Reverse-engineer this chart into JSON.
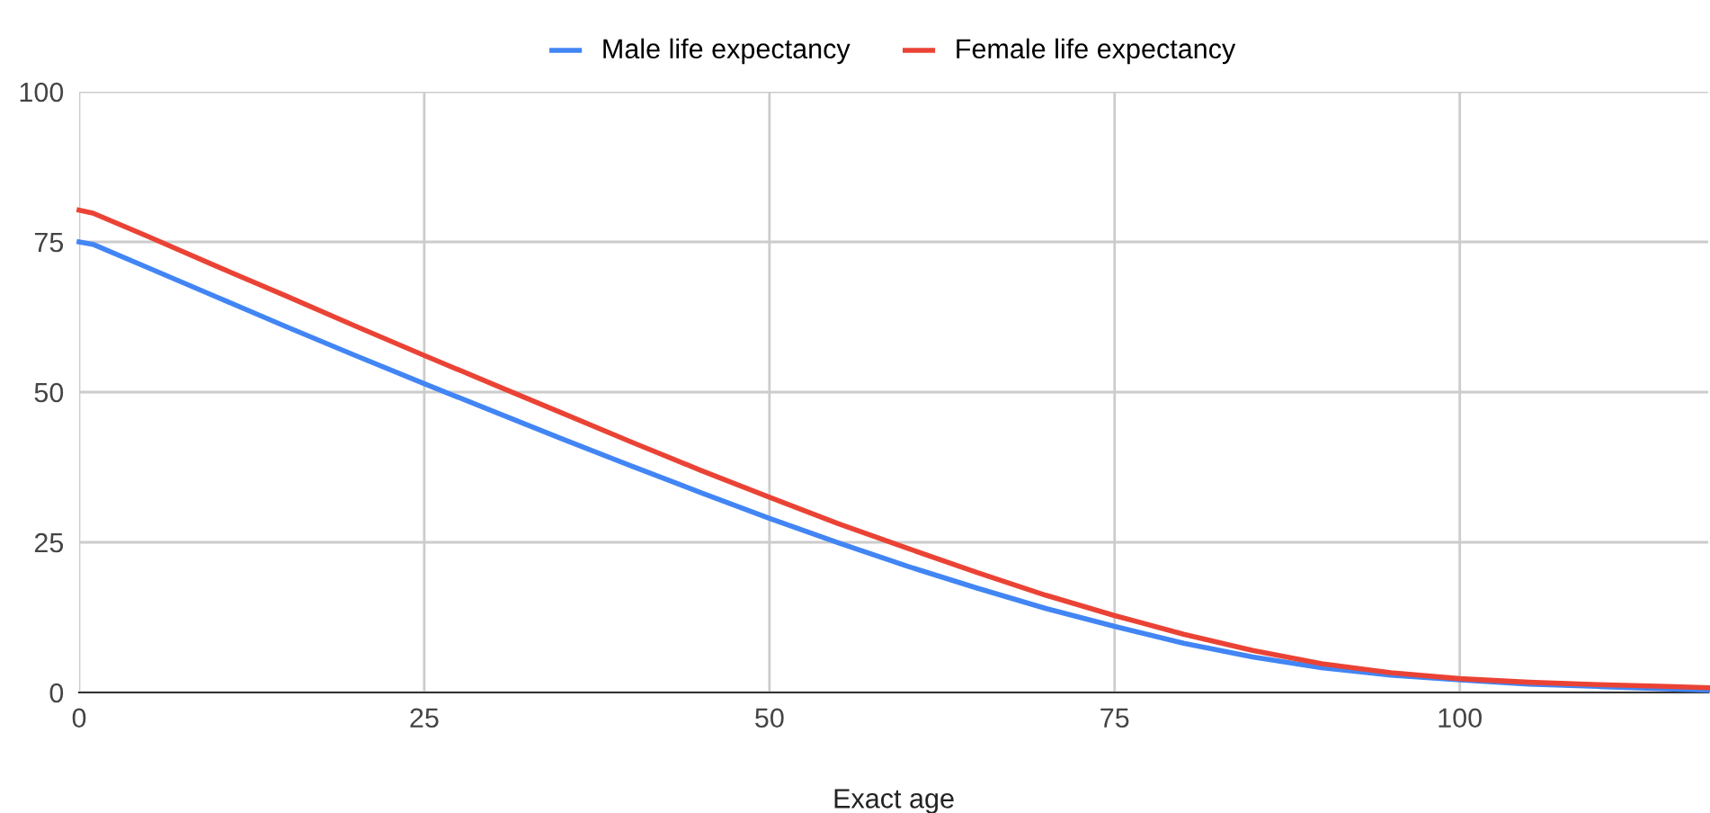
{
  "chart_data": {
    "type": "line",
    "xlabel": "Exact age",
    "x": [
      0,
      1,
      5,
      10,
      15,
      20,
      25,
      30,
      35,
      40,
      45,
      50,
      55,
      60,
      65,
      70,
      75,
      80,
      85,
      90,
      95,
      100,
      105,
      110,
      115,
      118
    ],
    "series": [
      {
        "name": "Male life expectancy",
        "color": "#4285f4",
        "values": [
          75,
          74.6,
          70.7,
          65.8,
          60.9,
          56.1,
          51.4,
          46.8,
          42.2,
          37.7,
          33.3,
          29.0,
          24.9,
          21.0,
          17.4,
          14.0,
          11.0,
          8.2,
          5.9,
          4.1,
          2.9,
          2.1,
          1.4,
          1.0,
          0.6,
          0.4
        ]
      },
      {
        "name": "Female life expectancy",
        "color": "#ea4335",
        "values": [
          80.3,
          79.8,
          75.9,
          70.9,
          66.0,
          61.0,
          56.1,
          51.3,
          46.5,
          41.7,
          37.0,
          32.5,
          28.1,
          24.0,
          20.0,
          16.2,
          12.8,
          9.7,
          7.0,
          4.8,
          3.3,
          2.3,
          1.7,
          1.3,
          1.0,
          0.8
        ]
      }
    ],
    "xlim": [
      0,
      118
    ],
    "xticks": [
      0,
      25,
      50,
      75,
      100
    ],
    "ylim": [
      0,
      100
    ],
    "yticks": [
      0,
      25,
      50,
      75,
      100
    ],
    "grid": true,
    "legend": "top",
    "marker": "none",
    "line_style": "solid"
  }
}
